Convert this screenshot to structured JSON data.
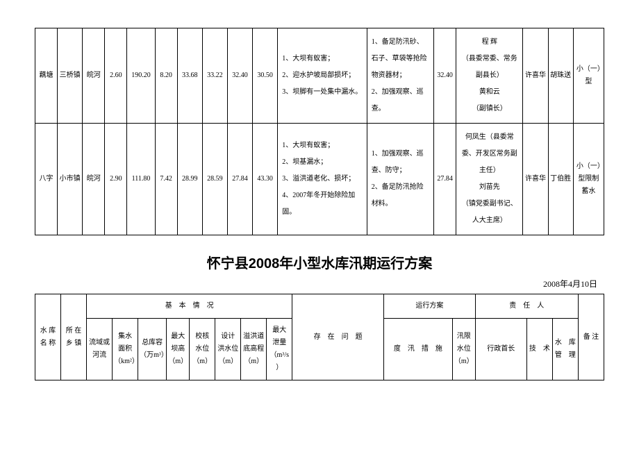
{
  "table1": {
    "col_widths": [
      "4%",
      "4.5%",
      "4%",
      "4%",
      "5%",
      "4%",
      "4.5%",
      "4.5%",
      "4.5%",
      "4.5%",
      "16%",
      "12%",
      "4%",
      "12%",
      "4.5%",
      "4.5%",
      "5.5%"
    ],
    "rows": [
      {
        "c0": "藕塘",
        "c1": "三桥镇",
        "c2": "皖河",
        "c3": "2.60",
        "c4": "190.20",
        "c5": "8.20",
        "c6": "33.68",
        "c7": "33.22",
        "c8": "32.40",
        "c9": "30.50",
        "problems": "1、大坝有蚁害；\n2、迎水护坡局部损坏；\n3、坝脚有一处集中漏水。",
        "measures": "1、备足防汛砂、石子、草袋等抢险物资器材；\n2、加强观察、巡查。",
        "c12": "32.40",
        "leader": "程  辉\n（县委常委、常务副县长）\n黄和云\n（副镇长）",
        "c14": "许喜华",
        "c15": "胡珠送",
        "c16": "小（一）型"
      },
      {
        "c0": "八字",
        "c1": "小市镇",
        "c2": "皖河",
        "c3": "2.90",
        "c4": "111.80",
        "c5": "7.42",
        "c6": "28.99",
        "c7": "28.59",
        "c8": "27.84",
        "c9": "43.30",
        "problems": "1、大坝有蚁害；\n2、坝基漏水；\n3、溢洪道老化、损坏；\n4、2007年冬开始除险加固。",
        "measures": "1、加强观察、巡查、防守；\n2、备足防汛抢险材料。",
        "c12": "27.84",
        "leader": "何凤生（县委常委、开发区常务副主任）\n刘苗先\n（镇党委副书记、人大主席）",
        "c14": "许喜华",
        "c15": "丁伯胜",
        "c16": "小（一）型限制蓄水"
      }
    ]
  },
  "title": "怀宁县2008年小型水库汛期运行方案",
  "date": "2008年4月10日",
  "table2": {
    "col_widths": [
      "4.5%",
      "4.5%",
      "4.5%",
      "4.5%",
      "5%",
      "4%",
      "4.5%",
      "4.5%",
      "4.5%",
      "4.5%",
      "16%",
      "12%",
      "4%",
      "9%",
      "4.5%",
      "4.5%",
      "4.5%"
    ],
    "header_group": {
      "basic": "基　本　情　况",
      "plan": "运行方案",
      "resp": "责　任　人"
    },
    "header2": {
      "name": "水 库\n名 称",
      "town": "所 在\n乡 镇",
      "river": "流域或\n河流",
      "area": "集水\n面积\n（km²）",
      "capacity": "总库容\n（万m³）",
      "height": "最大\n坝高\n（m）",
      "max_level": "校核\n水位\n（m）",
      "design_level": "设计\n洪水位\n（m）",
      "spill": "溢洪道\n底高程\n（m）",
      "discharge": "最大\n泄量\n（m³/s）",
      "problems": "存　在　问　题",
      "measures": "度　汛　措　施",
      "limit": "汛限\n水位\n（m）",
      "leader": "行政首长",
      "tech": "技　术",
      "mgr": "水　库\n管　理",
      "note": "备 注"
    }
  }
}
